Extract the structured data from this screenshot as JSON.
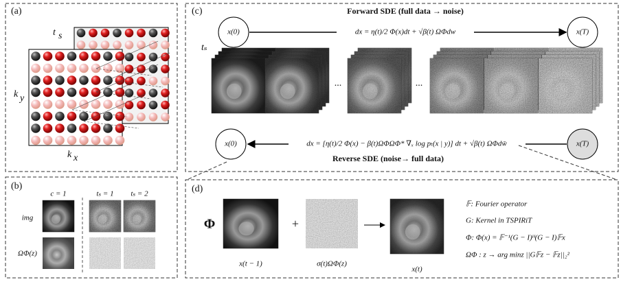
{
  "panel_a": {
    "label": "(a)",
    "time_axis": {
      "base": "t",
      "sub": "s"
    },
    "ky": {
      "base": "k",
      "sub": "y"
    },
    "kx": {
      "base": "k",
      "sub": "x"
    }
  },
  "panel_b": {
    "label": "(b)",
    "columns": [
      "c = 1",
      "tₛ = 1",
      "tₛ = 2"
    ],
    "rows": [
      "img",
      "ΩΦ(z)"
    ]
  },
  "panel_c": {
    "label": "(c)",
    "forward_title": "Forward SDE (full data → noise)",
    "forward_start": "x(0)",
    "forward_end": "x(T)",
    "forward_equation": "dx = η(t)/2 Φ(x)dt + √β(t) ΩΦdw",
    "stack_label": "tₛ",
    "ellipses": [
      "...",
      "..."
    ],
    "reverse_start": "x(0)",
    "reverse_end": "x(T)",
    "reverse_equation": "dx = [η(t)/2 Φ(x) − β(t)ΩΦΩΦ* ∇ₓ log pₜ(x | y)] dt + √β(t) ΩΦdw̄",
    "reverse_title": "Reverse SDE (noise→ full data)"
  },
  "panel_d": {
    "label": "(d)",
    "operator": "Φ",
    "plus": "+",
    "inputs": [
      "x(t − 1)",
      "σ(t)ΩΦ(z)"
    ],
    "output": "x(t)",
    "definitions": [
      "𝔽: Fourier operator",
      "G: Kernel in TSPIRiT",
      "Φ: Φ(x) = 𝔽⁻¹(G − I)ᴴ(G − I)𝔽x",
      "ΩΦ : z → arg minz ||G𝔽z − 𝔽z||₂²"
    ]
  }
}
